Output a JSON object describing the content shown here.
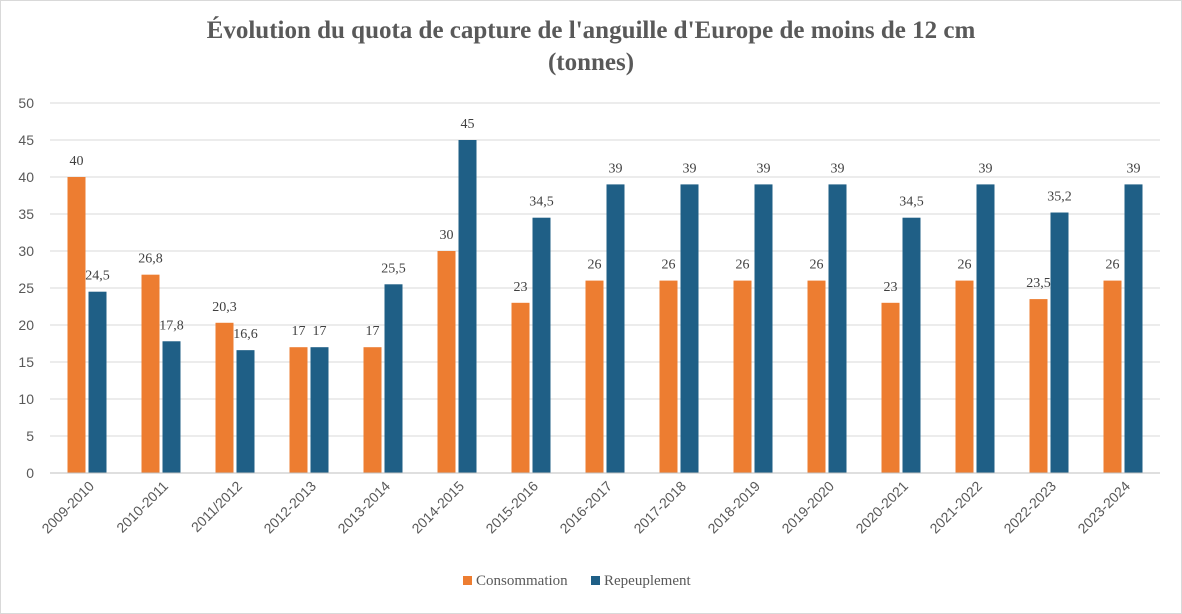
{
  "chart_data": {
    "type": "bar",
    "title_lines": [
      "Évolution du quota de capture de l'anguille d'Europe de moins de 12 cm",
      "(tonnes)"
    ],
    "categories": [
      "2009-2010",
      "2010-2011",
      "2011/2012",
      "2012-2013",
      "2013-2014",
      "2014-2015",
      "2015-2016",
      "2016-2017",
      "2017-2018",
      "2018-2019",
      "2019-2020",
      "2020-2021",
      "2021-2022",
      "2022-2023",
      "2023-2024"
    ],
    "series": [
      {
        "name": "Consommation",
        "color": "#ed7d31",
        "values": [
          40,
          26.8,
          20.3,
          17,
          17,
          30,
          23,
          26,
          26,
          26,
          26,
          23,
          26,
          23.5,
          26
        ],
        "labels": [
          "40",
          "26,8",
          "20,3",
          "17",
          "17",
          "30",
          "23",
          "26",
          "26",
          "26",
          "26",
          "23",
          "26",
          "23,5",
          "26"
        ]
      },
      {
        "name": "Repeuplement",
        "color": "#1f5f86",
        "values": [
          24.5,
          17.8,
          16.6,
          17,
          25.5,
          45,
          34.5,
          39,
          39,
          39,
          39,
          34.5,
          39,
          35.2,
          39
        ],
        "labels": [
          "24,5",
          "17,8",
          "16,6",
          "17",
          "25,5",
          "45",
          "34,5",
          "39",
          "39",
          "39",
          "39",
          "34,5",
          "39",
          "35,2",
          "39"
        ]
      }
    ],
    "ylim": [
      0,
      50
    ],
    "yticks": [
      "0",
      "5",
      "10",
      "15",
      "20",
      "25",
      "30",
      "35",
      "40",
      "45",
      "50"
    ],
    "grid": true,
    "legend": "bottom-center"
  }
}
